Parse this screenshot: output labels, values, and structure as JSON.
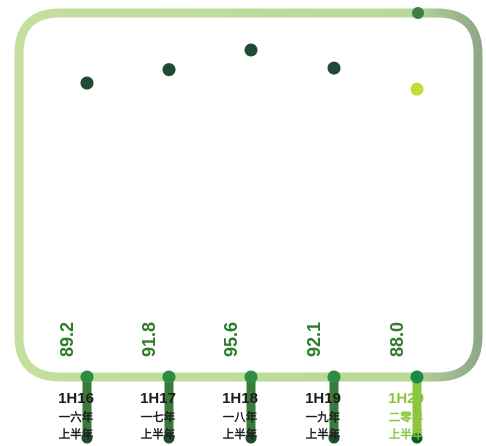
{
  "chart_data": {
    "type": "bar",
    "categories": [
      "1H16",
      "1H17",
      "1H18",
      "1H19",
      "1H20"
    ],
    "categories_cn": [
      [
        "一六年",
        "上半年"
      ],
      [
        "一七年",
        "上半年"
      ],
      [
        "一八年",
        "上半年"
      ],
      [
        "一九年",
        "上半年"
      ],
      [
        "二零年",
        "上半年"
      ]
    ],
    "values": [
      89.2,
      91.8,
      95.6,
      92.1,
      88.0
    ],
    "value_labels": [
      "89.2",
      "91.8",
      "95.6",
      "92.1",
      "88.0"
    ],
    "highlight_index": 4,
    "title": "",
    "xlabel": "",
    "ylabel": "",
    "ylim": [
      0,
      100
    ],
    "colors": {
      "bar": "#7aa83a",
      "bar_dark": "#2e5a30",
      "bar_light": "#4ca848",
      "highlight_bar": "#12934a",
      "highlight_top": "#c8d93a",
      "frame": "#b8d998",
      "frame_dark": "#7fa07a",
      "label": "#1d1d1d",
      "highlight_label": "#8cc63e",
      "value_text": "#2f7d2b"
    }
  }
}
